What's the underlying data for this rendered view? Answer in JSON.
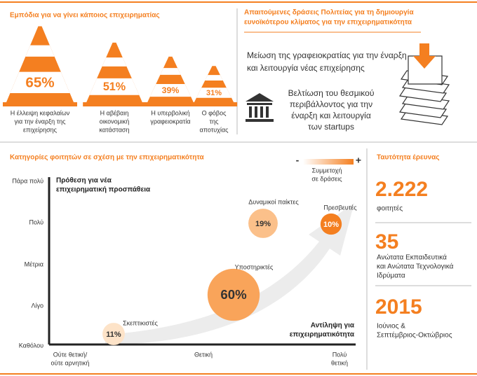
{
  "obstacles": {
    "title": "Εμπόδια για να γίνει κάποιος επιχειρηματίας",
    "items": [
      {
        "value": 65,
        "value_label": "65%",
        "caption": [
          "Η έλλειψη κεφαλαίων",
          "για την έναρξη της",
          "επιχείρησης"
        ]
      },
      {
        "value": 51,
        "value_label": "51%",
        "caption": [
          "Η αβέβαιη",
          "οικονομική",
          "κατάσταση"
        ]
      },
      {
        "value": 39,
        "value_label": "39%",
        "caption": [
          "Η υπερβολική",
          "γραφειοκρατία"
        ]
      },
      {
        "value": 31,
        "value_label": "31%",
        "caption": [
          "Ο φόβος",
          "της",
          "αποτυχίας"
        ]
      }
    ]
  },
  "actions": {
    "title": [
      "Απαιτούμενες δράσεις Πολιτείας για τη δημιουργία",
      "ευνοϊκότερου κλίματος για την επιχειρηματικότητα"
    ],
    "items": [
      {
        "text": [
          "Μείωση της γραφειοκρατίας για την έναρξη",
          "και λειτουργία νέας επιχείρησης"
        ]
      },
      {
        "text": [
          "Βελτίωση του θεσμικού",
          "περιβάλλοντος για την",
          "έναρξη και λειτουργία",
          "των startups"
        ]
      }
    ]
  },
  "segments": {
    "title": "Κατηγορίες φοιτητών σε σχέση με την επιχειρηματικότητα",
    "legend": {
      "minus": "-",
      "plus": "+",
      "label": [
        "Συμμετοχή",
        "σε δράσεις"
      ]
    },
    "y_axis": {
      "title": [
        "Πρόθεση για νέα",
        "επιχειρηματική προσπάθεια"
      ],
      "labels": [
        "Πάρα πολύ",
        "Πολύ",
        "Μέτρια",
        "Λίγο",
        "Καθόλου"
      ]
    },
    "x_axis": {
      "title": [
        "Αντίληψη για",
        "επιχειρηματικότητα"
      ],
      "labels": [
        [
          "Ούτε θετική/",
          "ούτε αρνητική"
        ],
        [
          "Θετική"
        ],
        [
          "Πολύ",
          "θετική"
        ]
      ]
    },
    "groups": [
      {
        "name": "Σκεπτικιστές",
        "value": 11,
        "value_label": "11%",
        "color": "#fde3c8"
      },
      {
        "name": "Υποστηρικτές",
        "value": 60,
        "value_label": "60%",
        "color": "#f9a45a"
      },
      {
        "name": "Δυναμικοί παίκτες",
        "value": 19,
        "value_label": "19%",
        "color": "#fbc08a"
      },
      {
        "name": "Πρεσβευτές",
        "value": 10,
        "value_label": "10%",
        "color": "#f47f20"
      }
    ]
  },
  "profile": {
    "title": "Ταυτότητα έρευνας",
    "facts": [
      {
        "figure": "2.222",
        "text": [
          "φοιτητές"
        ]
      },
      {
        "figure": "35",
        "text": [
          "Ανώτατα Εκπαιδευτικά",
          "και Ανώτατα Τεχνολογικά",
          "Ιδρύματα"
        ]
      },
      {
        "figure": "2015",
        "text": [
          "Ιούνιος &",
          "Σεπτέμβριος-Οκτώβριος"
        ]
      }
    ]
  }
}
